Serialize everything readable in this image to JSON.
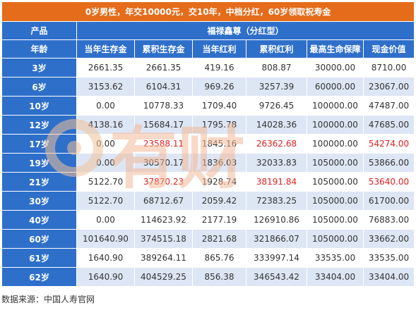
{
  "title": "0岁男性，年交10000元，交10年，中档分红，60岁领取祝寿金",
  "header": {
    "product_label": "产品",
    "product_name": "福禄鑫尊（分红型）",
    "age_label": "年龄",
    "columns": [
      "当年生存金",
      "累积生存金",
      "当年红利",
      "累积红利",
      "最高生命保障",
      "现金价值"
    ]
  },
  "rows": [
    {
      "age": "3岁",
      "cells": [
        "2661.35",
        "2661.35",
        "419.16",
        "808.87",
        "30000.00",
        "8710.00"
      ],
      "red": [
        false,
        false,
        false,
        false,
        false,
        false
      ]
    },
    {
      "age": "6岁",
      "cells": [
        "3153.62",
        "6104.31",
        "969.26",
        "3257.39",
        "60000.00",
        "23067.00"
      ],
      "red": [
        false,
        false,
        false,
        false,
        false,
        false
      ]
    },
    {
      "age": "10岁",
      "cells": [
        "0.00",
        "10778.33",
        "1709.40",
        "9726.45",
        "100000.00",
        "47487.00"
      ],
      "red": [
        false,
        false,
        false,
        false,
        false,
        false
      ]
    },
    {
      "age": "12岁",
      "cells": [
        "4138.16",
        "15684.17",
        "1795.78",
        "14028.36",
        "100000.00",
        "47685.00"
      ],
      "red": [
        false,
        false,
        false,
        false,
        false,
        false
      ]
    },
    {
      "age": "17岁",
      "cells": [
        "0.00",
        "23588.11",
        "1845.16",
        "26362.68",
        "100000.00",
        "54274.00"
      ],
      "red": [
        false,
        true,
        false,
        true,
        false,
        true
      ]
    },
    {
      "age": "19岁",
      "cells": [
        "0.00",
        "30570.17",
        "1836.03",
        "32033.83",
        "105000.00",
        "53866.00"
      ],
      "red": [
        false,
        false,
        false,
        false,
        false,
        false
      ]
    },
    {
      "age": "21岁",
      "cells": [
        "5122.70",
        "37870.23",
        "1928.74",
        "38191.84",
        "105000.00",
        "53640.00"
      ],
      "red": [
        false,
        true,
        false,
        true,
        false,
        true
      ]
    },
    {
      "age": "30岁",
      "cells": [
        "5122.70",
        "68712.67",
        "2059.42",
        "72383.25",
        "105000.00",
        "61700.00"
      ],
      "red": [
        false,
        false,
        false,
        false,
        false,
        false
      ]
    },
    {
      "age": "40岁",
      "cells": [
        "0.00",
        "114623.92",
        "2177.19",
        "126910.86",
        "105000.00",
        "76883.00"
      ],
      "red": [
        false,
        false,
        false,
        false,
        false,
        false
      ]
    },
    {
      "age": "60岁",
      "cells": [
        "101640.90",
        "374515.18",
        "2821.68",
        "321866.07",
        "105000.00",
        "33662.00"
      ],
      "red": [
        false,
        false,
        false,
        false,
        false,
        false
      ]
    },
    {
      "age": "61岁",
      "cells": [
        "1640.90",
        "389264.11",
        "865.76",
        "333997.14",
        "33535.00",
        "33535.00"
      ],
      "red": [
        false,
        false,
        false,
        false,
        false,
        false
      ]
    },
    {
      "age": "62岁",
      "cells": [
        "1640.90",
        "404529.25",
        "856.38",
        "346543.42",
        "33404.00",
        "33404.00"
      ],
      "red": [
        false,
        false,
        false,
        false,
        false,
        false
      ]
    }
  ],
  "source": "数据来源：中国人寿官网",
  "watermark_text": "有财",
  "colors": {
    "title_bg": "#e46c1a",
    "header_bg": "#2e6fca",
    "stripe": "#dde6f4",
    "highlight_text": "#e02020"
  }
}
